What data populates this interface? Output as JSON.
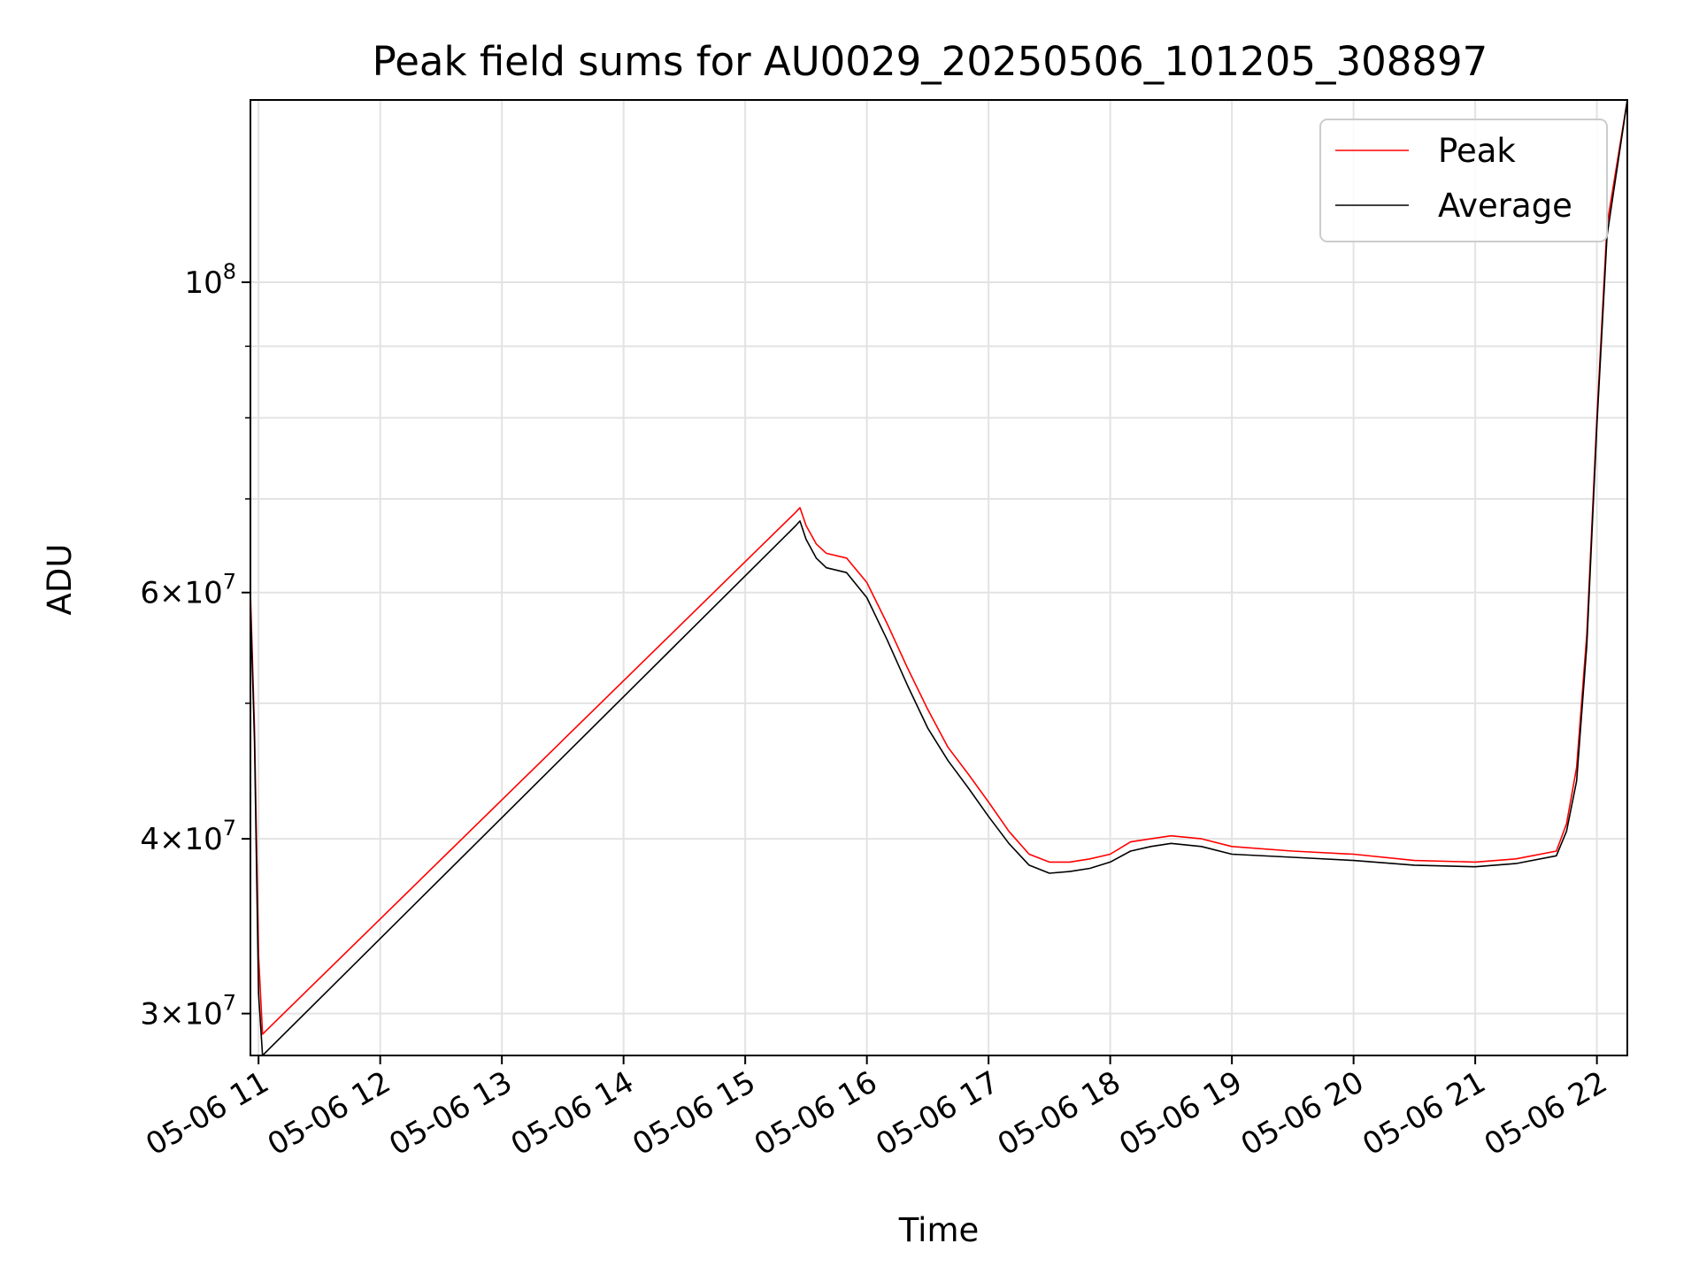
{
  "chart_data": {
    "type": "line",
    "title": "Peak field sums for AU0029_20250506_101205_308897",
    "xlabel": "Time",
    "ylabel": "ADU",
    "yscale": "log",
    "x_range": [
      "05-06 10:56",
      "05-06 22:15"
    ],
    "ylim": [
      28000000,
      135000000
    ],
    "grid": true,
    "legend_position": "upper right",
    "x_ticks": [
      {
        "x": "05-06 11:00",
        "label": "05-06 11"
      },
      {
        "x": "05-06 12:00",
        "label": "05-06 12"
      },
      {
        "x": "05-06 13:00",
        "label": "05-06 13"
      },
      {
        "x": "05-06 14:00",
        "label": "05-06 14"
      },
      {
        "x": "05-06 15:00",
        "label": "05-06 15"
      },
      {
        "x": "05-06 16:00",
        "label": "05-06 16"
      },
      {
        "x": "05-06 17:00",
        "label": "05-06 17"
      },
      {
        "x": "05-06 18:00",
        "label": "05-06 18"
      },
      {
        "x": "05-06 19:00",
        "label": "05-06 19"
      },
      {
        "x": "05-06 20:00",
        "label": "05-06 20"
      },
      {
        "x": "05-06 21:00",
        "label": "05-06 21"
      },
      {
        "x": "05-06 22:00",
        "label": "05-06 22"
      }
    ],
    "y_ticks": [
      {
        "y": 30000000,
        "mant": "3",
        "exp": "7"
      },
      {
        "y": 40000000,
        "mant": "4",
        "exp": "7"
      },
      {
        "y": 60000000,
        "mant": "6",
        "exp": "7"
      },
      {
        "y": 100000000,
        "mant": "",
        "exp": "8"
      }
    ],
    "y_minor_ticks": [
      50000000,
      70000000,
      80000000,
      90000000
    ],
    "series": [
      {
        "name": "Peak",
        "color": "#ff0000",
        "points": [
          [
            "05-06 10:56",
            60000000
          ],
          [
            "05-06 10:58",
            48000000
          ],
          [
            "05-06 11:00",
            33000000
          ],
          [
            "05-06 11:02",
            29000000
          ],
          [
            "05-06 15:25",
            68500000
          ],
          [
            "05-06 15:27",
            69000000
          ],
          [
            "05-06 15:30",
            67000000
          ],
          [
            "05-06 15:35",
            65000000
          ],
          [
            "05-06 15:40",
            64000000
          ],
          [
            "05-06 15:50",
            63500000
          ],
          [
            "05-06 16:00",
            61000000
          ],
          [
            "05-06 16:10",
            57000000
          ],
          [
            "05-06 16:20",
            53000000
          ],
          [
            "05-06 16:30",
            49500000
          ],
          [
            "05-06 16:40",
            46500000
          ],
          [
            "05-06 16:50",
            44500000
          ],
          [
            "05-06 17:00",
            42500000
          ],
          [
            "05-06 17:10",
            40500000
          ],
          [
            "05-06 17:20",
            39000000
          ],
          [
            "05-06 17:30",
            38500000
          ],
          [
            "05-06 17:40",
            38500000
          ],
          [
            "05-06 17:50",
            38700000
          ],
          [
            "05-06 18:00",
            39000000
          ],
          [
            "05-06 18:10",
            39800000
          ],
          [
            "05-06 18:20",
            40000000
          ],
          [
            "05-06 18:30",
            40200000
          ],
          [
            "05-06 18:45",
            40000000
          ],
          [
            "05-06 19:00",
            39500000
          ],
          [
            "05-06 19:30",
            39200000
          ],
          [
            "05-06 20:00",
            39000000
          ],
          [
            "05-06 20:30",
            38600000
          ],
          [
            "05-06 21:00",
            38500000
          ],
          [
            "05-06 21:20",
            38700000
          ],
          [
            "05-06 21:40",
            39200000
          ],
          [
            "05-06 21:45",
            41000000
          ],
          [
            "05-06 21:50",
            45000000
          ],
          [
            "05-06 21:55",
            56000000
          ],
          [
            "05-06 22:00",
            80000000
          ],
          [
            "05-06 22:05",
            110000000
          ],
          [
            "05-06 22:15",
            135000000
          ]
        ]
      },
      {
        "name": "Average",
        "color": "#000000",
        "points": [
          [
            "05-06 10:56",
            59000000
          ],
          [
            "05-06 10:58",
            47000000
          ],
          [
            "05-06 11:00",
            31000000
          ],
          [
            "05-06 11:02",
            28000000
          ],
          [
            "05-06 15:25",
            67000000
          ],
          [
            "05-06 15:27",
            67500000
          ],
          [
            "05-06 15:30",
            65500000
          ],
          [
            "05-06 15:35",
            63500000
          ],
          [
            "05-06 15:40",
            62500000
          ],
          [
            "05-06 15:50",
            62000000
          ],
          [
            "05-06 16:00",
            59500000
          ],
          [
            "05-06 16:10",
            55500000
          ],
          [
            "05-06 16:20",
            51500000
          ],
          [
            "05-06 16:30",
            48000000
          ],
          [
            "05-06 16:40",
            45500000
          ],
          [
            "05-06 16:50",
            43500000
          ],
          [
            "05-06 17:00",
            41500000
          ],
          [
            "05-06 17:10",
            39700000
          ],
          [
            "05-06 17:20",
            38300000
          ],
          [
            "05-06 17:30",
            37800000
          ],
          [
            "05-06 17:40",
            37900000
          ],
          [
            "05-06 17:50",
            38100000
          ],
          [
            "05-06 18:00",
            38500000
          ],
          [
            "05-06 18:10",
            39200000
          ],
          [
            "05-06 18:20",
            39500000
          ],
          [
            "05-06 18:30",
            39700000
          ],
          [
            "05-06 18:45",
            39500000
          ],
          [
            "05-06 19:00",
            39000000
          ],
          [
            "05-06 19:30",
            38800000
          ],
          [
            "05-06 20:00",
            38600000
          ],
          [
            "05-06 20:30",
            38300000
          ],
          [
            "05-06 21:00",
            38200000
          ],
          [
            "05-06 21:20",
            38400000
          ],
          [
            "05-06 21:40",
            38900000
          ],
          [
            "05-06 21:45",
            40500000
          ],
          [
            "05-06 21:50",
            44000000
          ],
          [
            "05-06 21:55",
            55000000
          ],
          [
            "05-06 22:00",
            79000000
          ],
          [
            "05-06 22:05",
            108000000
          ],
          [
            "05-06 22:15",
            135000000
          ]
        ]
      }
    ]
  }
}
